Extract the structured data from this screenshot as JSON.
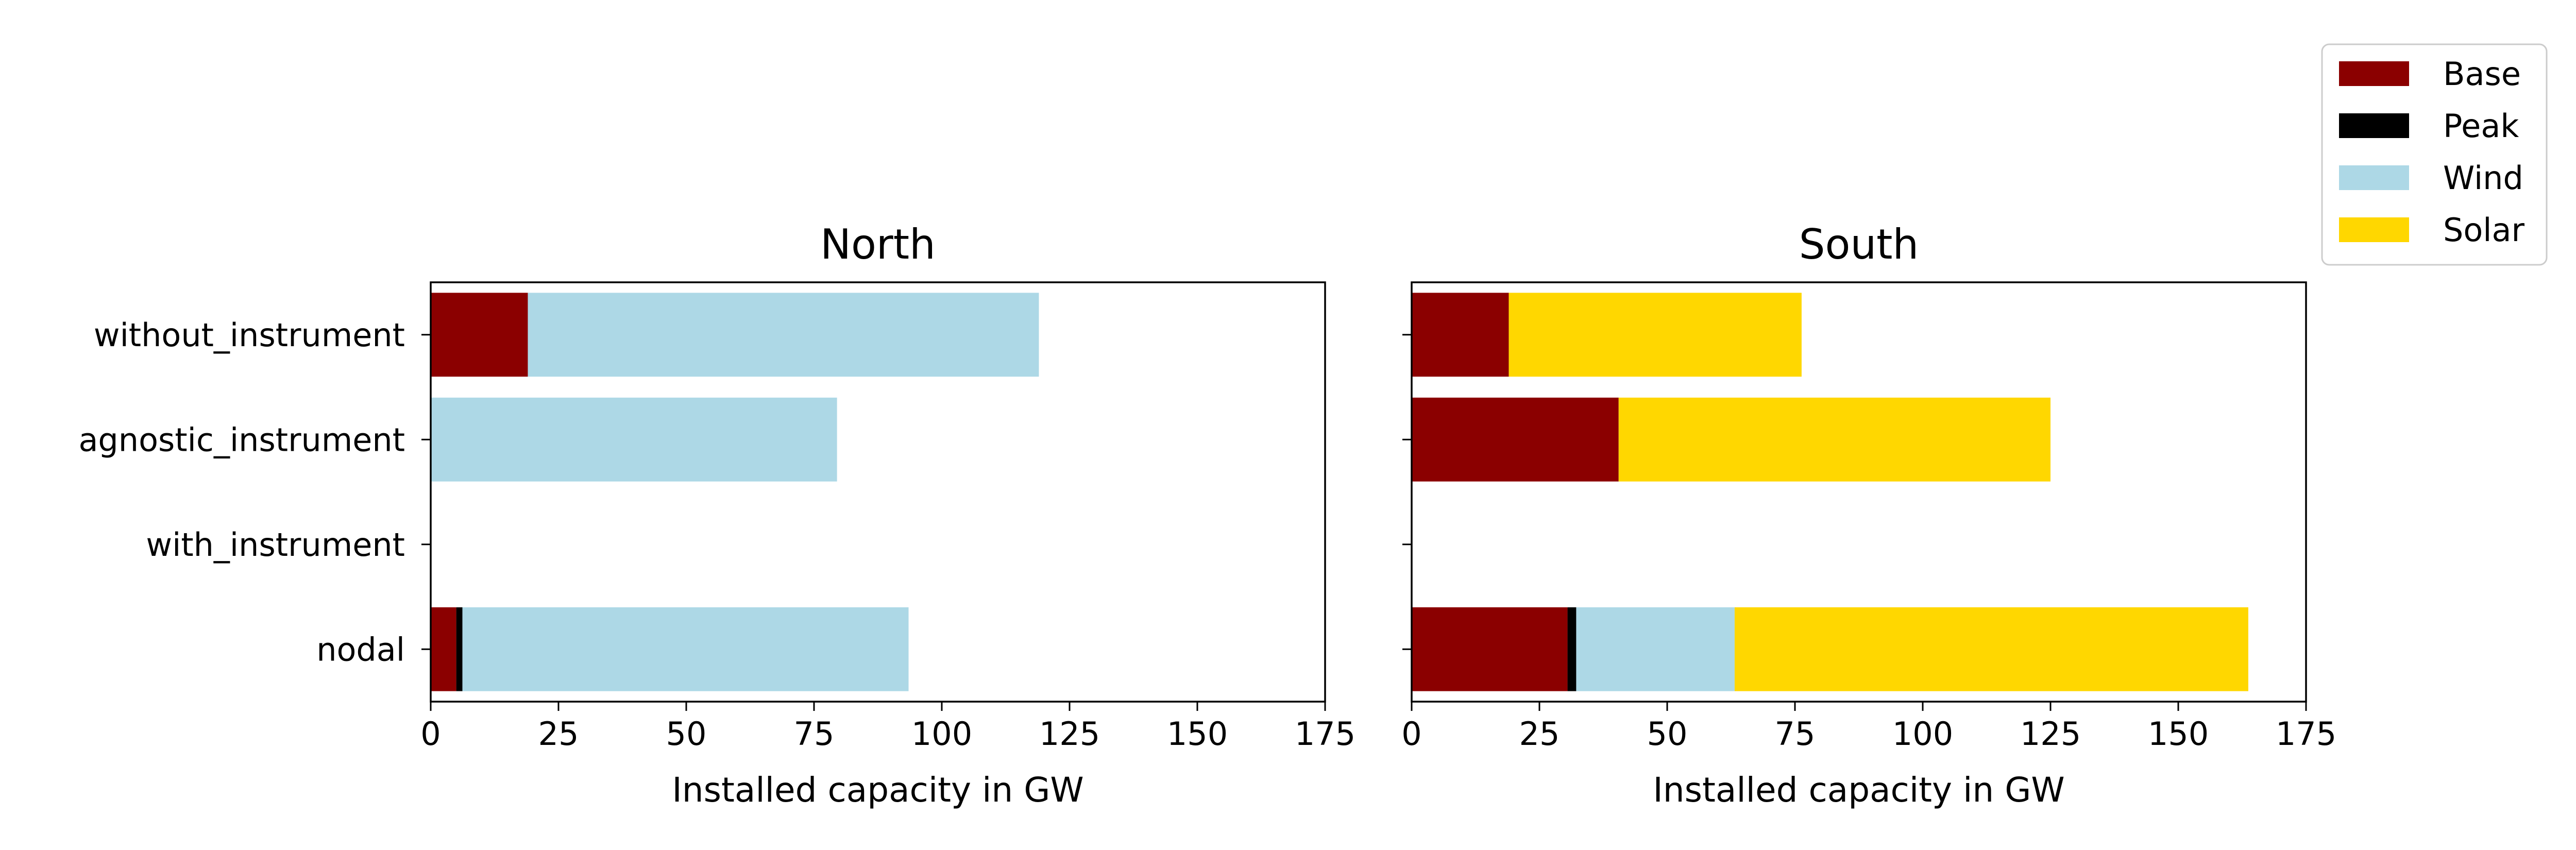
{
  "chart_data": {
    "type": "bar",
    "orientation": "horizontal",
    "stacked": true,
    "categories": [
      "without_instrument",
      "agnostic_instrument",
      "with_instrument",
      "nodal"
    ],
    "legend": {
      "placement": "upper-right-outside",
      "entries": [
        {
          "name": "Base",
          "color": "#8b0000"
        },
        {
          "name": "Peak",
          "color": "#000000"
        },
        {
          "name": "Wind",
          "color": "#add8e6"
        },
        {
          "name": "Solar",
          "color": "#ffd700"
        }
      ]
    },
    "panels": [
      {
        "title": "North",
        "xlabel": "Installed capacity in GW",
        "xlim": [
          0,
          175
        ],
        "xticks": [
          0,
          25,
          50,
          75,
          100,
          125,
          150,
          175
        ],
        "show_category_labels": true,
        "series": [
          {
            "name": "Base",
            "values": [
              19,
              0,
              0,
              5
            ]
          },
          {
            "name": "Peak",
            "values": [
              0,
              0,
              0,
              1.2
            ]
          },
          {
            "name": "Wind",
            "values": [
              100,
              79.5,
              0,
              87.3
            ]
          },
          {
            "name": "Solar",
            "values": [
              0,
              0,
              0,
              0
            ]
          }
        ]
      },
      {
        "title": "South",
        "xlabel": "Installed capacity in GW",
        "xlim": [
          0,
          175
        ],
        "xticks": [
          0,
          25,
          50,
          75,
          100,
          125,
          150,
          175
        ],
        "show_category_labels": false,
        "series": [
          {
            "name": "Base",
            "values": [
              19,
              40.5,
              0,
              30.5
            ]
          },
          {
            "name": "Peak",
            "values": [
              0,
              0,
              0,
              1.7
            ]
          },
          {
            "name": "Wind",
            "values": [
              0,
              0,
              0,
              31
            ]
          },
          {
            "name": "Solar",
            "values": [
              57.3,
              84.5,
              0,
              100.5
            ]
          }
        ]
      }
    ]
  }
}
